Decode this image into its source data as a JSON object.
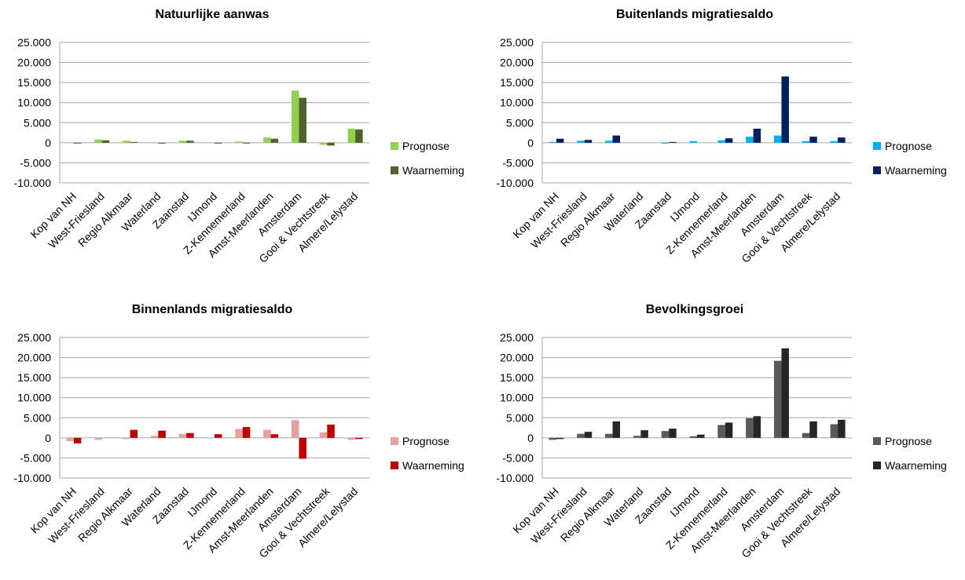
{
  "chart_data": [
    {
      "type": "bar",
      "title": "Natuurlijke aanwas",
      "categories": [
        "Kop van NH",
        "West-Friesland",
        "Regio Alkmaar",
        "Waterland",
        "Zaanstad",
        "IJmond",
        "Z-Kennemerland",
        "Amst-Meerlanden",
        "Amsterdam",
        "Gooi & Vechtstreek",
        "Almere/Lelystad"
      ],
      "series": [
        {
          "name": "Prognose",
          "color": "#92d050",
          "values": [
            -100,
            800,
            500,
            -100,
            500,
            -100,
            300,
            1300,
            13000,
            -500,
            3500
          ]
        },
        {
          "name": "Waarneming",
          "color": "#4f6228",
          "values": [
            -200,
            600,
            200,
            -200,
            500,
            -200,
            -200,
            1000,
            11200,
            -700,
            3300
          ]
        }
      ],
      "ylim": [
        -10000,
        25000
      ],
      "yticks": [
        "-10.000",
        "-5.000",
        "0",
        "5.000",
        "10.000",
        "15.000",
        "20.000",
        "25.000"
      ],
      "grid": true,
      "legend": "right"
    },
    {
      "type": "bar",
      "title": "Buitenlands migratiesaldo",
      "categories": [
        "Kop van NH",
        "West-Friesland",
        "Regio Alkmaar",
        "Waterland",
        "Zaanstad",
        "IJmond",
        "Z-Kennemerland",
        "Amst-Meerlanden",
        "Amsterdam",
        "Gooi & Vechtstreek",
        "Almere/Lelystad"
      ],
      "series": [
        {
          "name": "Prognose",
          "color": "#00b0f0",
          "values": [
            200,
            500,
            500,
            0,
            -200,
            400,
            600,
            1500,
            1800,
            400,
            400
          ]
        },
        {
          "name": "Waarneming",
          "color": "#002060",
          "values": [
            1000,
            700,
            1800,
            0,
            200,
            0,
            1100,
            3500,
            16500,
            1500,
            1300
          ]
        }
      ],
      "ylim": [
        -10000,
        25000
      ],
      "yticks": [
        "-10.000",
        "-5.000",
        "0",
        "5.000",
        "10.000",
        "15.000",
        "20.000",
        "25.000"
      ],
      "grid": true,
      "legend": "right"
    },
    {
      "type": "bar",
      "title": "Binnenlands migratiesaldo",
      "categories": [
        "Kop van NH",
        "West-Friesland",
        "Regio Alkmaar",
        "Waterland",
        "Zaanstad",
        "IJmond",
        "Z-Kennemerland",
        "Amst-Meerlanden",
        "Amsterdam",
        "Gooi & Vechtstreek",
        "Almere/Lelystad"
      ],
      "series": [
        {
          "name": "Prognose",
          "color": "#e6a0a0",
          "values": [
            -800,
            -500,
            -300,
            500,
            1000,
            0,
            2200,
            2000,
            4400,
            1400,
            -500
          ]
        },
        {
          "name": "Waarneming",
          "color": "#c00000",
          "values": [
            -1400,
            0,
            2000,
            1800,
            1200,
            900,
            2700,
            900,
            -5200,
            3300,
            -300
          ]
        }
      ],
      "ylim": [
        -10000,
        25000
      ],
      "yticks": [
        "-10.000",
        "-5.000",
        "0",
        "5.000",
        "10.000",
        "15.000",
        "20.000",
        "25.000"
      ],
      "grid": true,
      "legend": "right"
    },
    {
      "type": "bar",
      "title": "Bevolkingsgroei",
      "categories": [
        "Kop van NH",
        "West-Friesland",
        "Regio Alkmaar",
        "Waterland",
        "Zaanstad",
        "IJmond",
        "Z-Kennemerland",
        "Amst-Meerlanden",
        "Amsterdam",
        "Gooi & Vechtstreek",
        "Almere/Lelystad"
      ],
      "series": [
        {
          "name": "Prognose",
          "color": "#595959",
          "values": [
            -500,
            1000,
            1000,
            500,
            1700,
            400,
            3200,
            4900,
            19200,
            1200,
            3400
          ]
        },
        {
          "name": "Waarneming",
          "color": "#262626",
          "values": [
            -300,
            1500,
            4100,
            1900,
            2300,
            800,
            3800,
            5400,
            22300,
            4100,
            4500
          ]
        }
      ],
      "ylim": [
        -10000,
        25000
      ],
      "yticks": [
        "-10.000",
        "-5.000",
        "0",
        "5.000",
        "10.000",
        "15.000",
        "20.000",
        "25.000"
      ],
      "grid": true,
      "legend": "right"
    }
  ]
}
